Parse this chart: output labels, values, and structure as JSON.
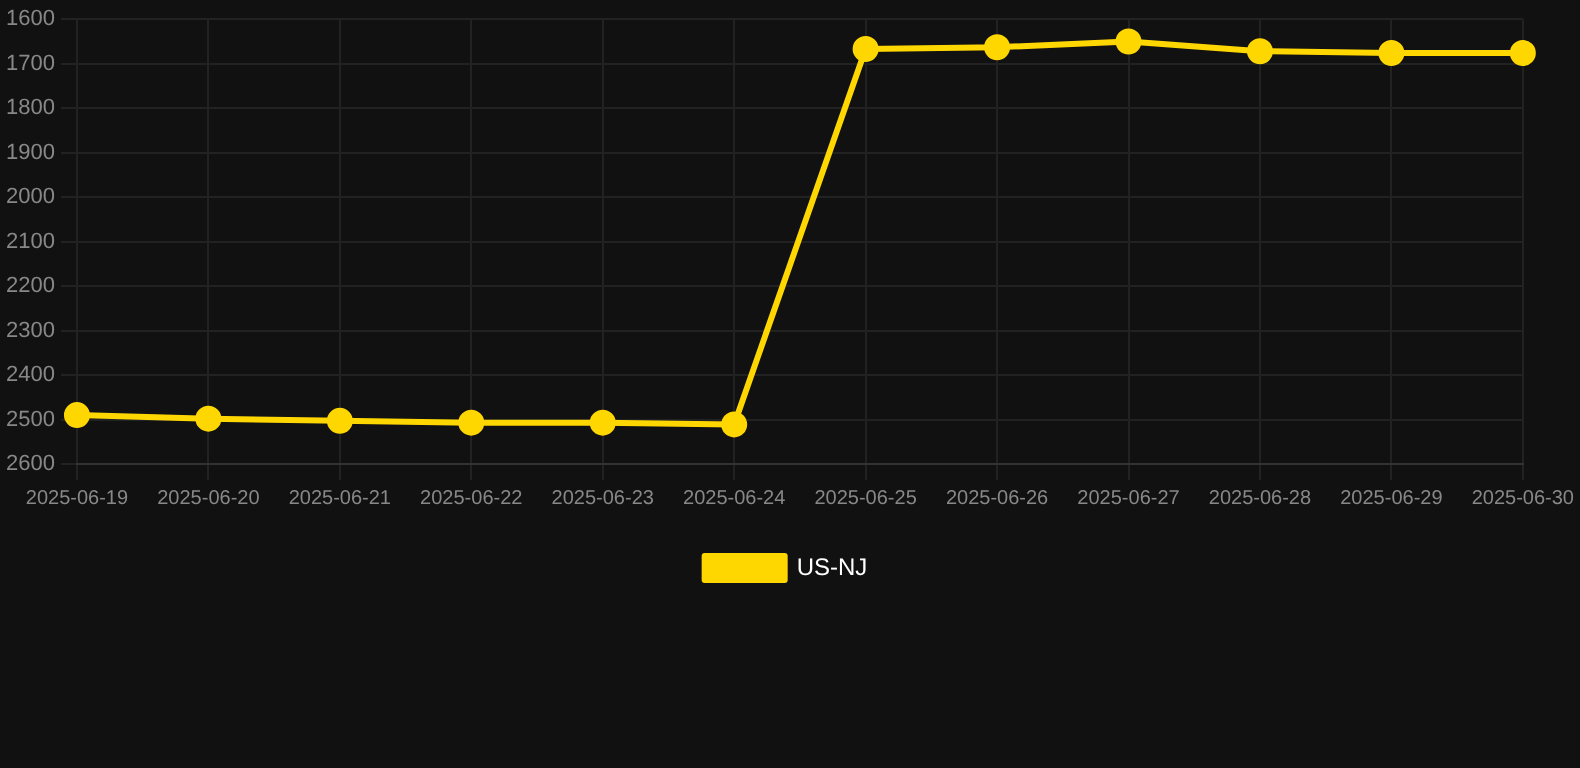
{
  "chart_data": {
    "type": "line",
    "categories": [
      "2025-06-19",
      "2025-06-20",
      "2025-06-21",
      "2025-06-22",
      "2025-06-23",
      "2025-06-24",
      "2025-06-25",
      "2025-06-26",
      "2025-06-27",
      "2025-06-28",
      "2025-06-29",
      "2025-06-30"
    ],
    "series": [
      {
        "name": "US-NJ",
        "color": "#ffd700",
        "values": [
          2490,
          2498,
          2503,
          2507,
          2507,
          2511,
          1667,
          1663,
          1650,
          1672,
          1676,
          1676
        ]
      }
    ],
    "ylim": [
      2600,
      1600
    ],
    "yticks": [
      1600,
      1700,
      1800,
      1900,
      2000,
      2100,
      2200,
      2300,
      2400,
      2500,
      2600
    ],
    "grid": true,
    "legend": "bottom",
    "marker": "circle",
    "line_style": "solid"
  }
}
